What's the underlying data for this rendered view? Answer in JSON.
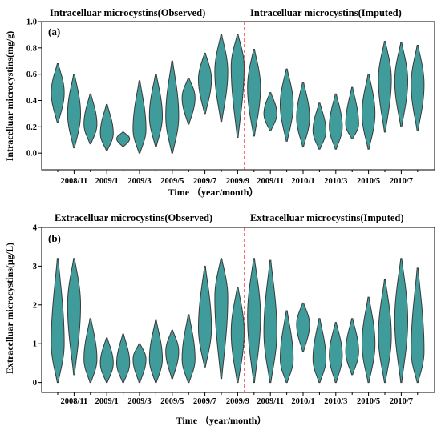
{
  "chart_data": [
    {
      "type": "violin",
      "panel_label": "(a)",
      "title_left": "Intracelluar microcystins(Observed)",
      "title_right": "Intracelluar microcystins(Imputed)",
      "xlabel": "Time （year/month）",
      "ylabel": "Intracelluar microcystins(mg/g)",
      "ylim": [
        -0.2,
        1.0
      ],
      "yticks": [
        "0.0",
        "0.2",
        "0.4",
        "0.6",
        "0.8",
        "1.0"
      ],
      "x_tick_labels": [
        "2008/11",
        "2009/1",
        "2009/3",
        "2009/5",
        "2009/7",
        "2009/9",
        "2009/11",
        "2010/1",
        "2010/3",
        "2010/5",
        "2010/7"
      ],
      "divider_between": [
        "2009/9",
        "2009/10"
      ],
      "series": [
        {
          "month": "2008/10",
          "min": 0.23,
          "max": 0.68,
          "mode": 0.46
        },
        {
          "month": "2008/11",
          "min": 0.04,
          "max": 0.6,
          "mode": 0.3
        },
        {
          "month": "2008/12",
          "min": 0.07,
          "max": 0.45,
          "mode": 0.22
        },
        {
          "month": "2009/1",
          "min": 0.02,
          "max": 0.37,
          "mode": 0.15
        },
        {
          "month": "2009/2",
          "min": 0.05,
          "max": 0.16,
          "mode": 0.11
        },
        {
          "month": "2009/3",
          "min": 0.0,
          "max": 0.55,
          "mode": 0.18
        },
        {
          "month": "2009/4",
          "min": 0.05,
          "max": 0.6,
          "mode": 0.28
        },
        {
          "month": "2009/5",
          "min": 0.0,
          "max": 0.7,
          "mode": 0.28
        },
        {
          "month": "2009/6",
          "min": 0.22,
          "max": 0.57,
          "mode": 0.42
        },
        {
          "month": "2009/7",
          "min": 0.3,
          "max": 0.76,
          "mode": 0.56
        },
        {
          "month": "2009/8",
          "min": 0.24,
          "max": 0.9,
          "mode": 0.62
        },
        {
          "month": "2009/9",
          "min": 0.12,
          "max": 0.9,
          "mode": 0.66
        },
        {
          "month": "2009/10",
          "min": 0.13,
          "max": 0.79,
          "mode": 0.5
        },
        {
          "month": "2009/11",
          "min": 0.17,
          "max": 0.46,
          "mode": 0.3
        },
        {
          "month": "2009/12",
          "min": 0.09,
          "max": 0.64,
          "mode": 0.37
        },
        {
          "month": "2010/1",
          "min": 0.05,
          "max": 0.54,
          "mode": 0.27
        },
        {
          "month": "2010/2",
          "min": 0.03,
          "max": 0.38,
          "mode": 0.17
        },
        {
          "month": "2010/3",
          "min": 0.03,
          "max": 0.45,
          "mode": 0.2
        },
        {
          "month": "2010/4",
          "min": 0.11,
          "max": 0.5,
          "mode": 0.22
        },
        {
          "month": "2010/5",
          "min": 0.03,
          "max": 0.6,
          "mode": 0.3
        },
        {
          "month": "2010/6",
          "min": 0.16,
          "max": 0.85,
          "mode": 0.56
        },
        {
          "month": "2010/7",
          "min": 0.2,
          "max": 0.84,
          "mode": 0.55
        },
        {
          "month": "2010/8",
          "min": 0.17,
          "max": 0.82,
          "mode": 0.52
        }
      ]
    },
    {
      "type": "violin",
      "panel_label": "(b)",
      "title_left": "Extracelluar microcystins(Observed)",
      "title_right": "Extracelluar microcystins(Imputed)",
      "xlabel": "Time （year/month）",
      "ylabel": "Extracelluar microcystins(μg/L)",
      "ylim": [
        -1,
        4
      ],
      "yticks": [
        "0",
        "1",
        "2",
        "3",
        "4"
      ],
      "x_tick_labels": [
        "2008/11",
        "2009/1",
        "2009/3",
        "2009/5",
        "2009/7",
        "2009/9",
        "2009/11",
        "2010/1",
        "2010/3",
        "2010/5",
        "2010/7"
      ],
      "divider_between": [
        "2009/9",
        "2009/10"
      ],
      "series": [
        {
          "month": "2008/10",
          "min": 0.0,
          "max": 3.2,
          "mode": 1.0
        },
        {
          "month": "2008/11",
          "min": 0.2,
          "max": 3.2,
          "mode": 2.0
        },
        {
          "month": "2008/12",
          "min": 0.0,
          "max": 1.65,
          "mode": 0.6
        },
        {
          "month": "2009/1",
          "min": 0.0,
          "max": 1.15,
          "mode": 0.5
        },
        {
          "month": "2009/2",
          "min": 0.0,
          "max": 1.25,
          "mode": 0.5
        },
        {
          "month": "2009/3",
          "min": 0.0,
          "max": 1.0,
          "mode": 0.6
        },
        {
          "month": "2009/4",
          "min": 0.0,
          "max": 1.6,
          "mode": 0.6
        },
        {
          "month": "2009/5",
          "min": 0.1,
          "max": 1.35,
          "mode": 0.8
        },
        {
          "month": "2009/6",
          "min": 0.0,
          "max": 1.75,
          "mode": 0.6
        },
        {
          "month": "2009/7",
          "min": 0.4,
          "max": 3.0,
          "mode": 1.4
        },
        {
          "month": "2009/8",
          "min": 0.1,
          "max": 3.2,
          "mode": 2.2
        },
        {
          "month": "2009/9",
          "min": 0.0,
          "max": 2.45,
          "mode": 1.3
        },
        {
          "month": "2009/10",
          "min": 0.0,
          "max": 3.2,
          "mode": 1.7
        },
        {
          "month": "2009/11",
          "min": 0.0,
          "max": 3.15,
          "mode": 1.3
        },
        {
          "month": "2009/12",
          "min": 0.0,
          "max": 1.85,
          "mode": 0.6
        },
        {
          "month": "2010/1",
          "min": 0.8,
          "max": 2.05,
          "mode": 1.5
        },
        {
          "month": "2010/2",
          "min": 0.0,
          "max": 1.65,
          "mode": 0.6
        },
        {
          "month": "2010/3",
          "min": 0.0,
          "max": 1.55,
          "mode": 0.7
        },
        {
          "month": "2010/4",
          "min": 0.2,
          "max": 1.65,
          "mode": 0.8
        },
        {
          "month": "2010/5",
          "min": 0.0,
          "max": 2.2,
          "mode": 1.0
        },
        {
          "month": "2010/6",
          "min": 0.0,
          "max": 2.65,
          "mode": 1.2
        },
        {
          "month": "2010/7",
          "min": 0.0,
          "max": 3.2,
          "mode": 1.6
        },
        {
          "month": "2010/8",
          "min": 0.0,
          "max": 2.95,
          "mode": 0.8
        }
      ]
    }
  ]
}
